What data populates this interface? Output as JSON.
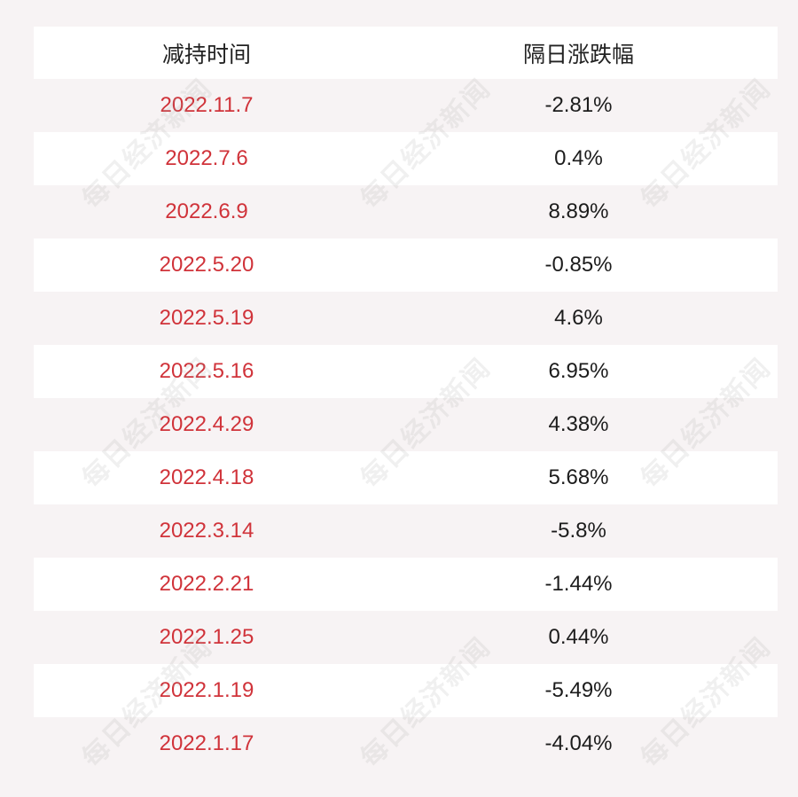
{
  "table": {
    "header": {
      "date": "减持时间",
      "change": "隔日涨跌幅"
    },
    "rows": [
      {
        "date": "2022.11.7",
        "change": "-2.81%"
      },
      {
        "date": "2022.7.6",
        "change": "0.4%"
      },
      {
        "date": "2022.6.9",
        "change": "8.89%"
      },
      {
        "date": "2022.5.20",
        "change": "-0.85%"
      },
      {
        "date": "2022.5.19",
        "change": "4.6%"
      },
      {
        "date": "2022.5.16",
        "change": "6.95%"
      },
      {
        "date": "2022.4.29",
        "change": "4.38%"
      },
      {
        "date": "2022.4.18",
        "change": "5.68%"
      },
      {
        "date": "2022.3.14",
        "change": "-5.8%"
      },
      {
        "date": "2022.2.21",
        "change": "-1.44%"
      },
      {
        "date": "2022.1.25",
        "change": "0.44%"
      },
      {
        "date": "2022.1.19",
        "change": "-5.49%"
      },
      {
        "date": "2022.1.17",
        "change": "-4.04%"
      }
    ]
  },
  "watermark": {
    "text": "每日经济新闻"
  },
  "colors": {
    "date_text": "#d0333a",
    "value_text": "#1c1c1c",
    "background": "#f7f3f4",
    "stripe": "#ffffff"
  }
}
